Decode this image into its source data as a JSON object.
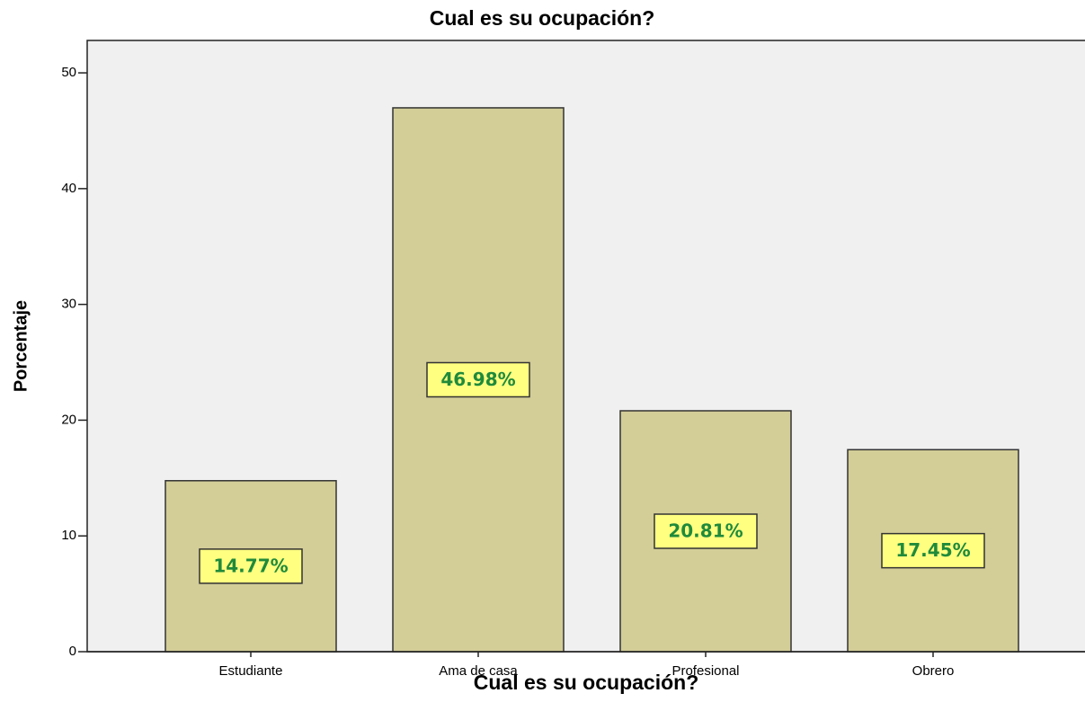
{
  "chart_data": {
    "type": "bar",
    "title": "Cual es su ocupación?",
    "x_label": "Cual es su ocupación?",
    "y_label": "Porcentaje",
    "categories": [
      "Estudiante",
      "Ama de casa",
      "Profesional",
      "Obrero"
    ],
    "values": [
      14.77,
      46.98,
      20.81,
      17.45
    ],
    "value_labels": [
      "14.77%",
      "46.98%",
      "20.81%",
      "17.45%"
    ],
    "color": "#d3cd98",
    "background": "#f0f0f0",
    "label_color": "#ffff80",
    "ylim": [
      0,
      52.8
    ],
    "yticks": [
      0,
      10,
      20,
      30,
      40,
      50
    ]
  }
}
